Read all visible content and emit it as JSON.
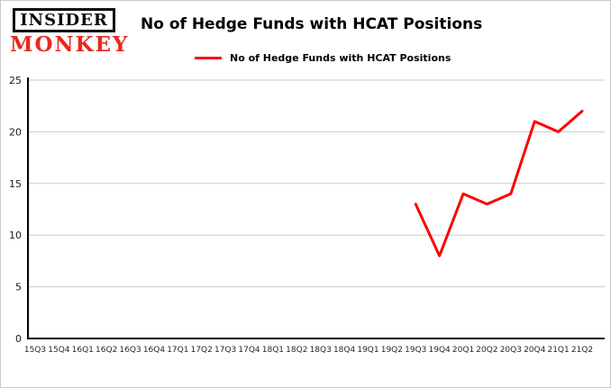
{
  "logo": {
    "line1": "INSIDER",
    "line2": "MONKEY",
    "accent_color": "#e8281e"
  },
  "header": {
    "title": "No of Hedge Funds with HCAT Positions"
  },
  "legend": {
    "label": "No of Hedge Funds with HCAT Positions",
    "color": "#fe0000"
  },
  "chart_data": {
    "type": "line",
    "title": "No of Hedge Funds with HCAT Positions",
    "categories": [
      "15Q3",
      "15Q4",
      "16Q1",
      "16Q2",
      "16Q3",
      "16Q4",
      "17Q1",
      "17Q2",
      "17Q3",
      "17Q4",
      "18Q1",
      "18Q2",
      "18Q3",
      "18Q4",
      "19Q1",
      "19Q2",
      "19Q3",
      "19Q4",
      "20Q1",
      "20Q2",
      "20Q3",
      "20Q4",
      "21Q1",
      "21Q2"
    ],
    "series": [
      {
        "name": "No of Hedge Funds with HCAT Positions",
        "color": "#fe0000",
        "values": [
          null,
          null,
          null,
          null,
          null,
          null,
          null,
          null,
          null,
          null,
          null,
          null,
          null,
          null,
          null,
          null,
          13,
          8,
          14,
          13,
          14,
          21,
          20,
          22
        ]
      }
    ],
    "xlabel": "",
    "ylabel": "",
    "ylim": [
      0,
      25
    ],
    "yticks": [
      0,
      5,
      10,
      15,
      20,
      25
    ],
    "grid": true,
    "gridline_color": "#c8c8c8",
    "axis_color": "#000000",
    "legend_position": "top"
  }
}
